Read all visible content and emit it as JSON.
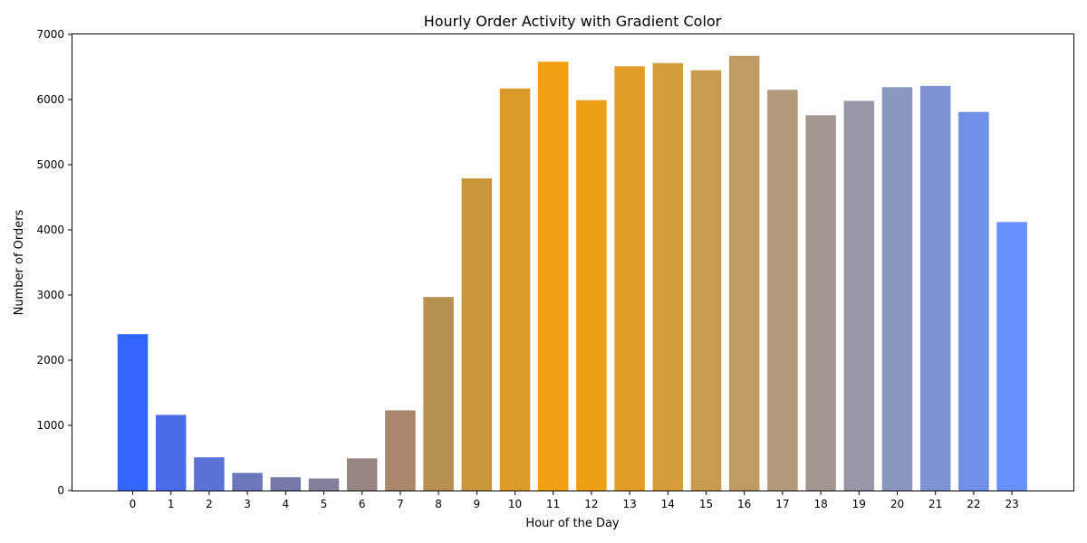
{
  "chart_data": {
    "type": "bar",
    "title": "Hourly Order Activity with Gradient Color",
    "xlabel": "Hour of the Day",
    "ylabel": "Number of Orders",
    "categories": [
      "0",
      "1",
      "2",
      "3",
      "4",
      "5",
      "6",
      "7",
      "8",
      "9",
      "10",
      "11",
      "12",
      "13",
      "14",
      "15",
      "16",
      "17",
      "18",
      "19",
      "20",
      "21",
      "22",
      "23"
    ],
    "values": [
      2400,
      1160,
      510,
      270,
      205,
      185,
      495,
      1230,
      2970,
      4790,
      6170,
      6580,
      5990,
      6510,
      6560,
      6450,
      6670,
      6150,
      5760,
      5980,
      6190,
      6210,
      5810,
      4120
    ],
    "colors": [
      "#3366ff",
      "#4a6de6",
      "#5a72d4",
      "#6b76bb",
      "#7479a8",
      "#857f99",
      "#978582",
      "#a8876a",
      "#b89050",
      "#c9963a",
      "#db9b2b",
      "#f0a010",
      "#ef9f14",
      "#e09d27",
      "#d49c3a",
      "#c89b4e",
      "#bd9b63",
      "#b09a7a",
      "#a39691",
      "#9997a7",
      "#8b97bf",
      "#7f93d3",
      "#6f8fe8",
      "#6690ff"
    ],
    "yticks": [
      0,
      1000,
      2000,
      3000,
      4000,
      5000,
      6000,
      7000
    ],
    "ylim": [
      0,
      7000
    ],
    "grid": false,
    "legend": "none"
  }
}
